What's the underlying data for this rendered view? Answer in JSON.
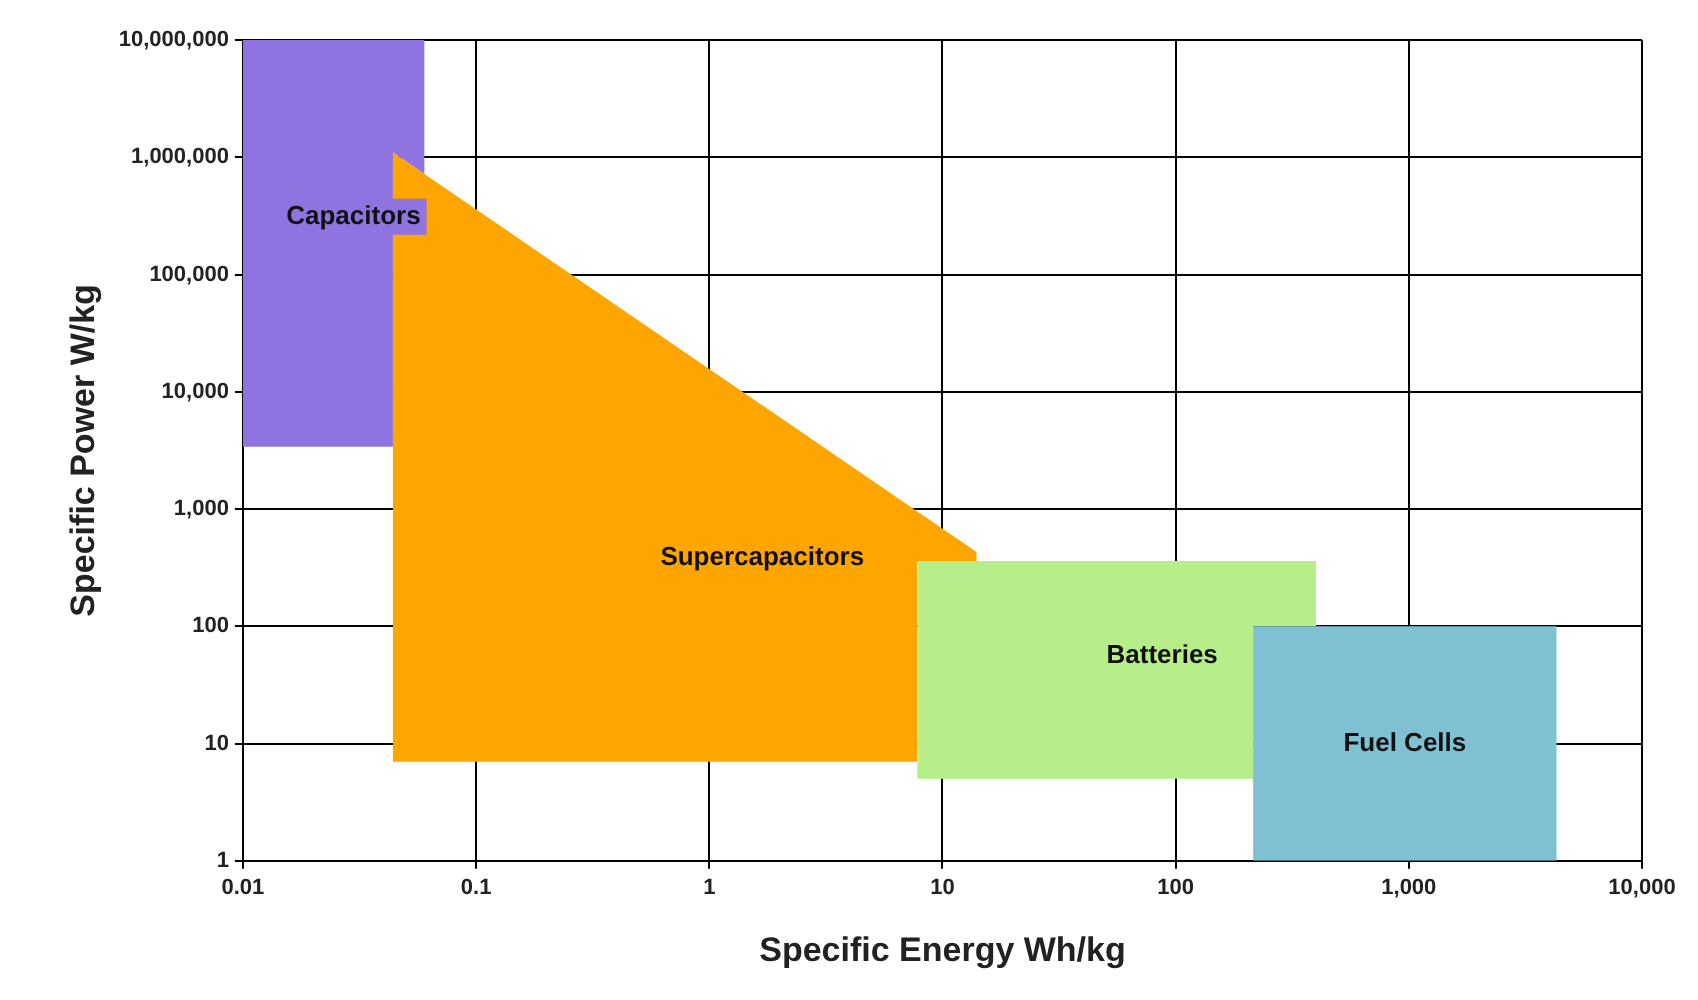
{
  "chart_data": {
    "type": "area",
    "xlabel": "Specific Energy Wh/kg",
    "ylabel": "Specific Power W/kg",
    "log": "xy",
    "grid": true,
    "legend": false,
    "xlim": [
      0.01,
      10000
    ],
    "xticks": [
      0.01,
      0.1,
      1,
      10,
      100,
      {
        "value": 1000,
        "label": "1,000"
      },
      {
        "value": 10000,
        "label": "10,000"
      }
    ],
    "ylim": [
      1,
      10000000
    ],
    "yticks": [
      1,
      10,
      100,
      {
        "value": 1000,
        "label": "1,000"
      },
      {
        "value": 10000,
        "label": "10,000"
      },
      {
        "value": 100000,
        "label": "100,000"
      },
      {
        "value": 1000000,
        "label": "1,000,000"
      },
      {
        "value": 10000000,
        "label": "10,000,000"
      }
    ],
    "series": [
      {
        "name": "Capacitors",
        "color": "#8f73e0",
        "x": [
          0.01,
          0.06,
          0.06,
          0.044,
          0.044,
          0.01
        ],
        "values": [
          10000000,
          10000000,
          720000,
          1100000,
          3400,
          3400
        ]
      },
      {
        "name": "Supercapacitors",
        "color": "#ffa500",
        "x": [
          0.044,
          14,
          14,
          7.8,
          7.8,
          0.044
        ],
        "values": [
          1100000,
          430,
          360,
          360,
          7,
          7
        ]
      },
      {
        "name": "Batteries",
        "color": "#b7ee8a",
        "x": [
          7.8,
          400,
          400,
          215,
          215,
          7.8
        ],
        "values": [
          360,
          360,
          100,
          100,
          5,
          5
        ]
      },
      {
        "name": "Fuel Cells",
        "color": "#7fc0d2",
        "x": [
          215,
          4300,
          4300,
          215
        ],
        "values": [
          100,
          100,
          1,
          1
        ]
      }
    ]
  }
}
